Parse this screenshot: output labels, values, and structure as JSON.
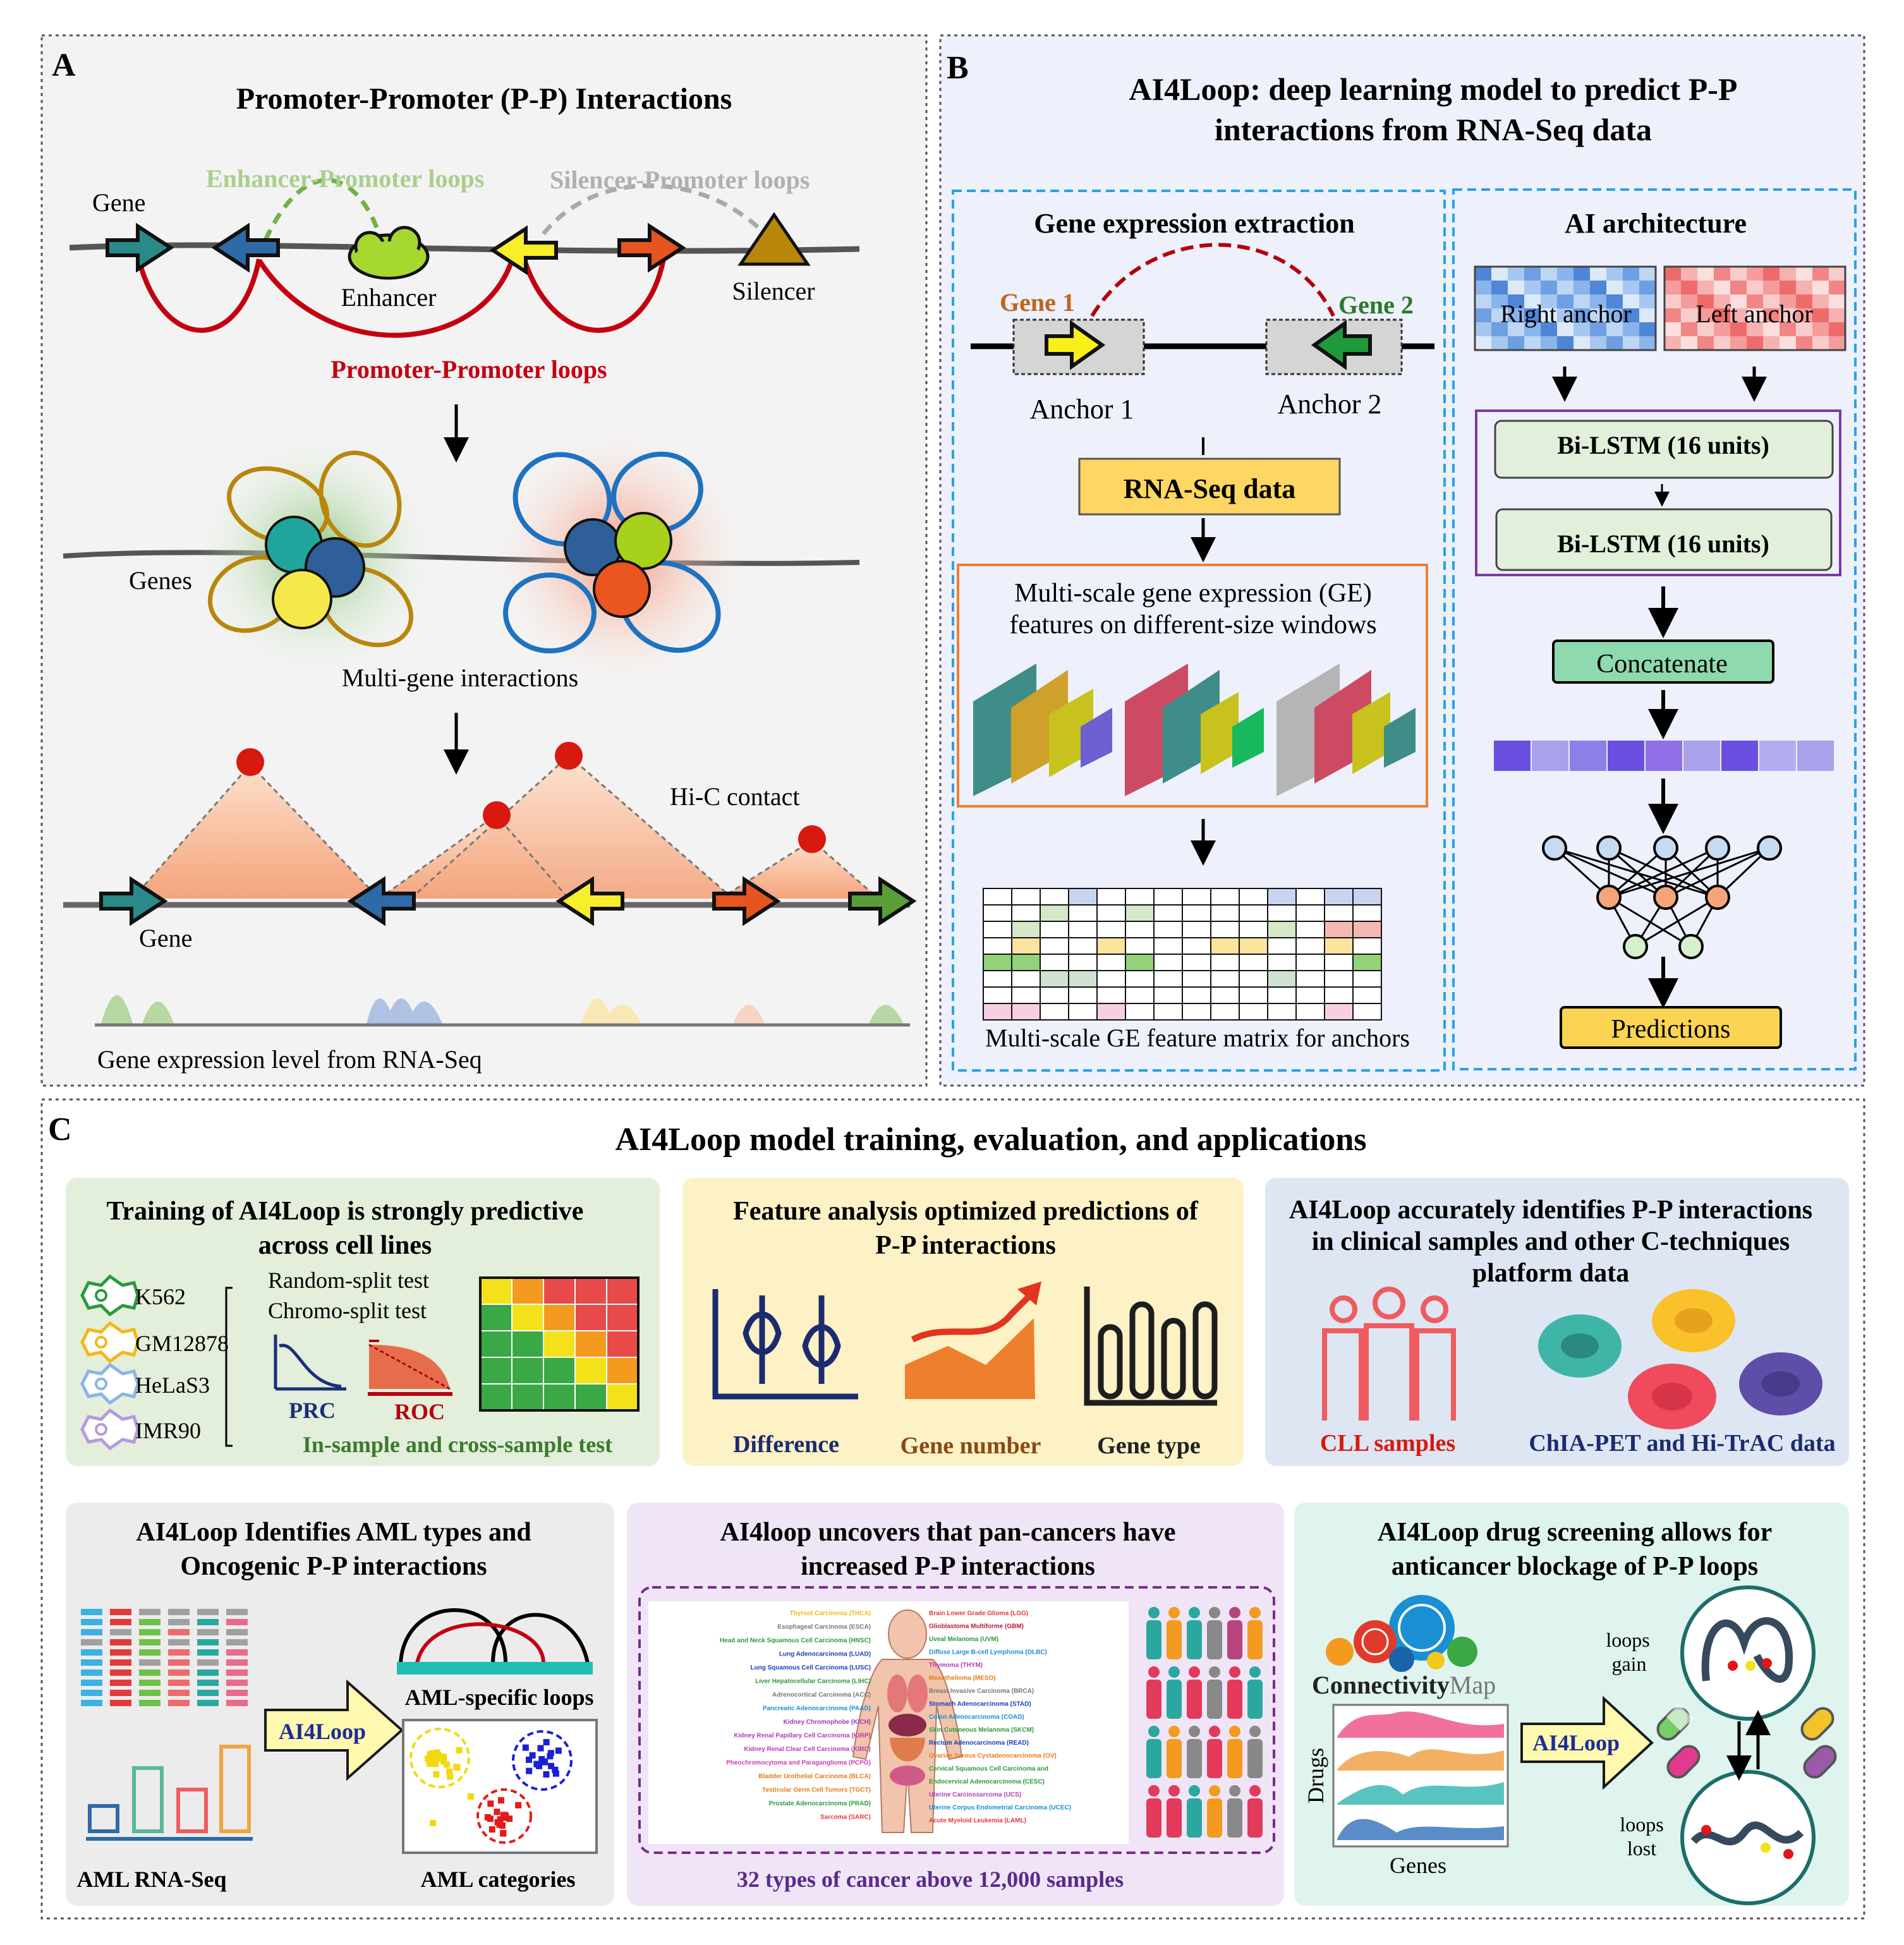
{
  "panelA": {
    "letter": "A",
    "title": "Promoter-Promoter (P-P) Interactions",
    "enhancer_loops": "Enhancer-Promoter loops",
    "silencer_loops": "Silencer-Promoter loops",
    "gene": "Gene",
    "enhancer": "Enhancer",
    "silencer": "Silencer",
    "pp_loops": "Promoter-Promoter loops",
    "genes": "Genes",
    "multigene": "Multi-gene interactions",
    "hic": "Hi-C contact",
    "gene2": "Gene",
    "expr": "Gene expression level from RNA-Seq"
  },
  "panelB": {
    "letter": "B",
    "title1": "AI4Loop: deep learning model to predict P-P",
    "title2": "interactions from RNA-Seq data",
    "extract_title": "Gene expression extraction",
    "gene1": "Gene 1",
    "gene2": "Gene 2",
    "anchor1": "Anchor 1",
    "anchor2": "Anchor 2",
    "rnaseq": "RNA-Seq data",
    "multiscale1": "Multi-scale gene expression (GE)",
    "multiscale2": "features on different-size windows",
    "matrix_label": "Multi-scale GE feature matrix for anchors",
    "ai_title": "AI architecture",
    "right_anchor": "Right anchor",
    "left_anchor": "Left anchor",
    "lstm1": "Bi-LSTM (16 units)",
    "lstm2": "Bi-LSTM (16 units)",
    "concat": "Concatenate",
    "predictions": "Predictions"
  },
  "panelC": {
    "letter": "C",
    "title": "AI4Loop model training, evaluation, and applications",
    "box1": {
      "title1": "Training of AI4Loop is strongly predictive",
      "title2": "across cell lines",
      "cells": [
        "K562",
        "GM12878",
        "HeLaS3",
        "IMR90"
      ],
      "random": "Random-split test",
      "chromo": "Chromo-split test",
      "prc": "PRC",
      "roc": "ROC",
      "footer": "In-sample and cross-sample test"
    },
    "box2": {
      "title1": "Feature analysis optimized predictions of",
      "title2": "P-P interactions",
      "difference": "Difference",
      "gene_number": "Gene number",
      "gene_type": "Gene type"
    },
    "box3": {
      "title1": "AI4Loop accurately identifies P-P interactions",
      "title2": "in clinical samples and other C-techniques",
      "title3": "platform data",
      "cll": "CLL samples",
      "chia": "ChIA-PET and Hi-TrAC data"
    },
    "box4": {
      "title1": "AI4Loop Identifies AML types and",
      "title2": "Oncogenic P-P interactions",
      "ai4loop": "AI4Loop",
      "aml_loops": "AML-specific loops",
      "aml_rnaseq": "AML RNA-Seq",
      "aml_cat": "AML categories"
    },
    "box5": {
      "title1": "AI4loop uncovers that pan-cancers have",
      "title2": "increased P-P interactions",
      "left_cancers": [
        "Thyroid Carcinoma (THCA)",
        "Esophageal Carcinoma (ESCA)",
        "Head and Neck Squamous Cell Carcinoma (HNSC)",
        "Lung Adenocarcinoma (LUAD)",
        "Lung Squamous Cell Carcinoma (LUSC)",
        "Liver Hepatocellular Carcinoma (LIHC)",
        "Adrenocortical Carcinoma (ACC)",
        "Pancreatic Adenocarcinoma (PAAD)",
        "Kidney Chromophobe (KICH)",
        "Kidney Renal Papillary Cell Carcinoma (KIRP)",
        "Kidney Renal Clear Cell Carcinoma (KIRC)",
        "Pheochromocytoma and Paraganglioma (PCPG)",
        "Bladder Urothelial Carcinoma (BLCA)",
        "Testicular Germ Cell Tumors (TGCT)",
        "Prostate Adenocarcinoma (PRAD)",
        "Sarcoma (SARC)"
      ],
      "right_cancers": [
        "Brain Lower Grade Glioma (LGG)",
        "Glioblastoma Multiforme (GBM)",
        "Uveal Melanoma (UVM)",
        "Diffuse Large B-cell Lymphoma (DLBC)",
        "Thymoma (THYM)",
        "Mesothelioma (MESO)",
        "Breast Invasive Carcinoma (BRCA)",
        "Stomach Adenocarcinoma (STAD)",
        "Colon Adenocarcinoma (COAD)",
        "Skin Cutaneous Melanoma (SKCM)",
        "Rectum Adenocarcinoma (READ)",
        "Ovarian Serous Cystadenocarcinoma (OV)",
        "Cervical Squamous Cell Carcinoma and",
        "Endocervical Adenocarcinoma (CESC)",
        "Uterine Carcinosarcoma (UCS)",
        "Uterine Corpus Endometrial Carcinoma (UCEC)",
        "Acute Myeloid Leukemia (LAML)"
      ],
      "footer": "32 types of cancer above 12,000 samples"
    },
    "box6": {
      "title1": "AI4Loop drug screening allows for",
      "title2": "anticancer blockage of P-P loops",
      "cmap_a": "Connectivity",
      "cmap_b": "Map",
      "drugs": "Drugs",
      "genes": "Genes",
      "ai4loop": "AI4Loop",
      "gain1": "loops",
      "gain2": "gain",
      "lost1": "loops",
      "lost2": "lost"
    }
  }
}
